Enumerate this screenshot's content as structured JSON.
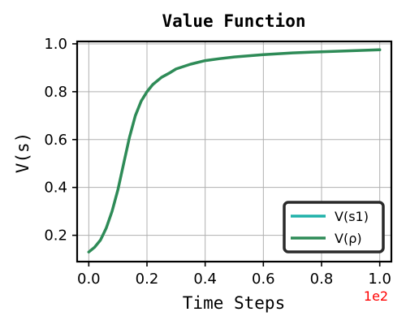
{
  "chart_data": {
    "type": "line",
    "title": "Value Function",
    "xlabel": "Time Steps",
    "ylabel": "V(s)",
    "x_offset_label": "1e2",
    "x_offset_color": "#ff0000",
    "xlim": [
      -0.04,
      1.04
    ],
    "ylim": [
      0.09,
      1.01
    ],
    "xticks": [
      0.0,
      0.2,
      0.4,
      0.6,
      0.8,
      1.0
    ],
    "xtick_labels": [
      "0.0",
      "0.2",
      "0.4",
      "0.6",
      "0.8",
      "1.0"
    ],
    "yticks": [
      0.2,
      0.4,
      0.6,
      0.8,
      1.0
    ],
    "ytick_labels": [
      "0.2",
      "0.4",
      "0.6",
      "0.8",
      "1.0"
    ],
    "grid": true,
    "legend_position": "lower-right",
    "series": [
      {
        "name": "V(s1)",
        "color": "#20b2aa",
        "x": [
          0.0
        ],
        "y": [
          0.13
        ]
      },
      {
        "name": "V(ρ)",
        "color": "#2e8b57",
        "x": [
          0.0,
          0.02,
          0.04,
          0.06,
          0.08,
          0.1,
          0.12,
          0.14,
          0.16,
          0.18,
          0.2,
          0.22,
          0.25,
          0.28,
          0.3,
          0.35,
          0.4,
          0.45,
          0.5,
          0.6,
          0.7,
          0.8,
          0.9,
          1.0
        ],
        "y": [
          0.13,
          0.15,
          0.18,
          0.23,
          0.3,
          0.39,
          0.5,
          0.61,
          0.7,
          0.76,
          0.8,
          0.83,
          0.86,
          0.88,
          0.895,
          0.915,
          0.93,
          0.938,
          0.945,
          0.955,
          0.962,
          0.967,
          0.971,
          0.975
        ]
      }
    ]
  }
}
